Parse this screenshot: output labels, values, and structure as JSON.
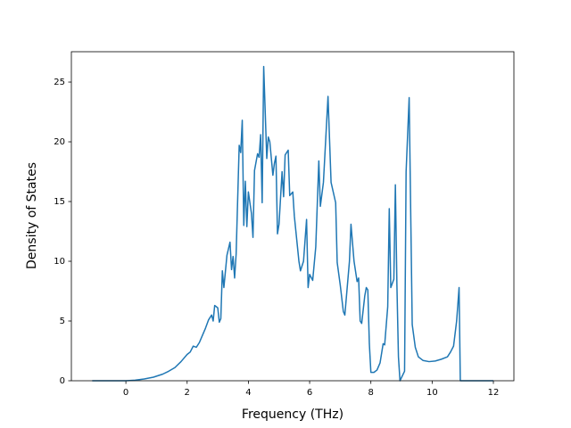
{
  "chart_data": {
    "type": "line",
    "xlabel": "Frequency (THz)",
    "ylabel": "Density of States",
    "color": "#1f77b4",
    "x": [
      -1.1,
      -0.5,
      0,
      0.3,
      0.6,
      0.9,
      1.2,
      1.4,
      1.6,
      1.8,
      2.0,
      2.1,
      2.2,
      2.3,
      2.4,
      2.5,
      2.6,
      2.7,
      2.8,
      2.85,
      2.9,
      3.0,
      3.05,
      3.1,
      3.15,
      3.2,
      3.3,
      3.4,
      3.45,
      3.5,
      3.55,
      3.6,
      3.7,
      3.75,
      3.8,
      3.85,
      3.9,
      3.95,
      4.0,
      4.1,
      4.15,
      4.2,
      4.3,
      4.35,
      4.4,
      4.45,
      4.5,
      4.6,
      4.65,
      4.7,
      4.8,
      4.85,
      4.9,
      4.95,
      5.0,
      5.1,
      5.15,
      5.2,
      5.3,
      5.35,
      5.45,
      5.5,
      5.65,
      5.7,
      5.8,
      5.9,
      5.95,
      6.0,
      6.1,
      6.2,
      6.3,
      6.35,
      6.45,
      6.6,
      6.7,
      6.85,
      6.9,
      7.0,
      7.1,
      7.15,
      7.3,
      7.35,
      7.45,
      7.55,
      7.6,
      7.65,
      7.7,
      7.8,
      7.85,
      7.9,
      7.95,
      8.0,
      8.1,
      8.2,
      8.3,
      8.4,
      8.45,
      8.55,
      8.6,
      8.65,
      8.75,
      8.8,
      8.85,
      8.9,
      8.95,
      9.1,
      9.15,
      9.25,
      9.35,
      9.45,
      9.55,
      9.7,
      9.9,
      10.1,
      10.3,
      10.5,
      10.6,
      10.7,
      10.8,
      10.88,
      10.92,
      11.5,
      12.0
    ],
    "values": [
      0,
      0,
      0,
      0.05,
      0.15,
      0.3,
      0.55,
      0.8,
      1.1,
      1.6,
      2.2,
      2.4,
      2.9,
      2.8,
      3.2,
      3.8,
      4.4,
      5.1,
      5.5,
      5.0,
      6.3,
      6.1,
      4.9,
      5.2,
      9.2,
      7.8,
      10.5,
      11.6,
      9.3,
      10.4,
      8.6,
      10.6,
      19.7,
      19.1,
      21.8,
      13.0,
      16.7,
      12.9,
      15.8,
      14.0,
      12.0,
      17.6,
      19.0,
      18.7,
      20.6,
      14.9,
      26.3,
      18.6,
      20.4,
      20.0,
      17.2,
      18.2,
      18.8,
      12.3,
      13.1,
      17.5,
      15.4,
      18.9,
      19.3,
      15.5,
      15.8,
      13.8,
      10.0,
      9.2,
      10.0,
      13.5,
      7.8,
      8.9,
      8.4,
      11.2,
      18.4,
      14.6,
      16.6,
      23.8,
      16.6,
      14.9,
      9.9,
      8.0,
      5.8,
      5.5,
      10.0,
      13.1,
      10.0,
      8.3,
      8.6,
      5.0,
      4.8,
      7.1,
      7.8,
      7.6,
      3.1,
      0.7,
      0.7,
      0.9,
      1.5,
      3.1,
      3.0,
      6.2,
      14.4,
      7.8,
      8.5,
      16.4,
      8.0,
      2.0,
      0,
      0.8,
      17.5,
      23.7,
      4.7,
      2.8,
      2.0,
      1.7,
      1.6,
      1.65,
      1.8,
      2.0,
      2.4,
      2.9,
      5.0,
      7.8,
      0,
      0,
      0
    ],
    "xlim": [
      -1.78,
      12.67
    ],
    "ylim": [
      0,
      27.54
    ],
    "xticks": [
      0,
      2,
      4,
      6,
      8,
      10,
      12
    ],
    "yticks": [
      0,
      5,
      10,
      15,
      20,
      25
    ]
  }
}
